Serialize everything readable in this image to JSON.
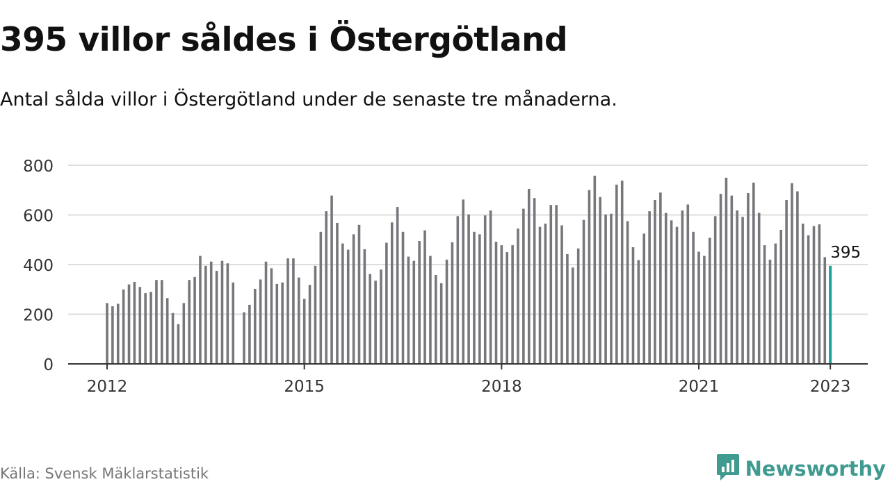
{
  "header": {
    "title": "395 villor såldes i Östergötland",
    "subtitle": "Antal sålda villor i Östergötland under de senaste tre månaderna."
  },
  "footer": {
    "source": "Källa: Svensk Mäklarstatistik",
    "brand": "Newsworthy",
    "brand_icon": "newsworthy-logo-icon"
  },
  "colors": {
    "bar": "#77767b",
    "highlight": "#1aa39a",
    "grid": "#dddddd",
    "axis": "#333333",
    "brand": "#3f9a90"
  },
  "chart_data": {
    "type": "bar",
    "x_start": "2012-01",
    "x_ticks": [
      "2012",
      "2015",
      "2018",
      "2021",
      "2023"
    ],
    "y_ticks": [
      0,
      200,
      400,
      600,
      800
    ],
    "ylim": [
      0,
      800
    ],
    "grid": true,
    "highlight_label": "395",
    "values": [
      245,
      232,
      242,
      300,
      320,
      330,
      310,
      285,
      290,
      338,
      338,
      265,
      205,
      160,
      245,
      338,
      350,
      435,
      395,
      412,
      375,
      415,
      405,
      328,
      null,
      208,
      238,
      302,
      340,
      412,
      385,
      322,
      328,
      425,
      425,
      348,
      262,
      318,
      395,
      532,
      615,
      678,
      568,
      485,
      460,
      522,
      560,
      462,
      362,
      335,
      380,
      488,
      570,
      632,
      532,
      432,
      415,
      495,
      538,
      435,
      358,
      325,
      420,
      490,
      595,
      662,
      602,
      532,
      522,
      598,
      618,
      492,
      478,
      450,
      478,
      545,
      625,
      705,
      668,
      552,
      565,
      640,
      640,
      558,
      442,
      388,
      465,
      580,
      700,
      758,
      672,
      602,
      605,
      722,
      738,
      575,
      470,
      418,
      525,
      615,
      660,
      690,
      608,
      578,
      552,
      618,
      642,
      532,
      452,
      435,
      508,
      595,
      685,
      750,
      678,
      618,
      592,
      688,
      730,
      608,
      478,
      420,
      485,
      540,
      660,
      728,
      695,
      565,
      518,
      555,
      562,
      430,
      395
    ]
  }
}
